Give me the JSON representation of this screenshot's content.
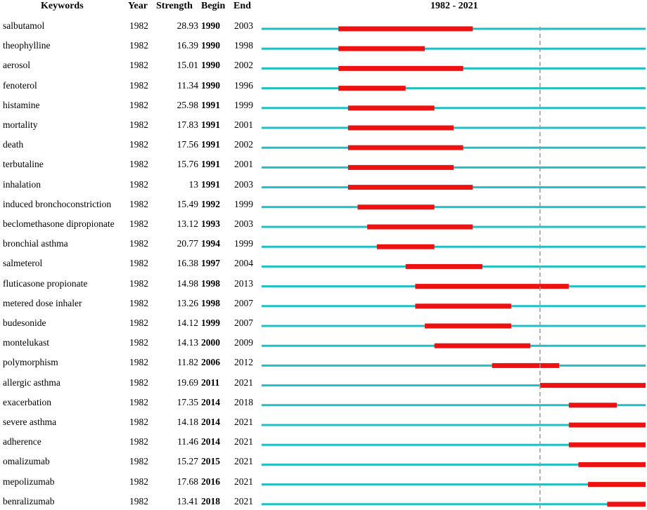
{
  "headers": {
    "keywords": "Keywords",
    "year": "Year",
    "strength": "Strength",
    "begin": "Begin",
    "end": "End",
    "range": "1982 - 2021"
  },
  "chart_data": {
    "type": "table",
    "timeline_start": 1982,
    "timeline_end": 2021,
    "reference_line_year": 2011,
    "colors": {
      "baseline": "#1fbfc3",
      "burst": "#ee1111",
      "reference": "#999999"
    },
    "columns": [
      "Keywords",
      "Year",
      "Strength",
      "Begin",
      "End"
    ],
    "rows": [
      {
        "keyword": "salbutamol",
        "year": "1982",
        "strength": "28.93",
        "begin": "1990",
        "end": "2003"
      },
      {
        "keyword": "theophylline",
        "year": "1982",
        "strength": "16.39",
        "begin": "1990",
        "end": "1998"
      },
      {
        "keyword": "aerosol",
        "year": "1982",
        "strength": "15.01",
        "begin": "1990",
        "end": "2002"
      },
      {
        "keyword": "fenoterol",
        "year": "1982",
        "strength": "11.34",
        "begin": "1990",
        "end": "1996"
      },
      {
        "keyword": "histamine",
        "year": "1982",
        "strength": "25.98",
        "begin": "1991",
        "end": "1999"
      },
      {
        "keyword": "mortality",
        "year": "1982",
        "strength": "17.83",
        "begin": "1991",
        "end": "2001"
      },
      {
        "keyword": "death",
        "year": "1982",
        "strength": "17.56",
        "begin": "1991",
        "end": "2002"
      },
      {
        "keyword": "terbutaline",
        "year": "1982",
        "strength": "15.76",
        "begin": "1991",
        "end": "2001"
      },
      {
        "keyword": "inhalation",
        "year": "1982",
        "strength": "13",
        "begin": "1991",
        "end": "2003"
      },
      {
        "keyword": "induced bronchoconstriction",
        "year": "1982",
        "strength": "15.49",
        "begin": "1992",
        "end": "1999"
      },
      {
        "keyword": "beclomethasone dipropionate",
        "year": "1982",
        "strength": "13.12",
        "begin": "1993",
        "end": "2003"
      },
      {
        "keyword": "bronchial asthma",
        "year": "1982",
        "strength": "20.77",
        "begin": "1994",
        "end": "1999"
      },
      {
        "keyword": "salmeterol",
        "year": "1982",
        "strength": "16.38",
        "begin": "1997",
        "end": "2004"
      },
      {
        "keyword": "fluticasone propionate",
        "year": "1982",
        "strength": "14.98",
        "begin": "1998",
        "end": "2013"
      },
      {
        "keyword": "metered dose inhaler",
        "year": "1982",
        "strength": "13.26",
        "begin": "1998",
        "end": "2007"
      },
      {
        "keyword": "budesonide",
        "year": "1982",
        "strength": "14.12",
        "begin": "1999",
        "end": "2007"
      },
      {
        "keyword": "montelukast",
        "year": "1982",
        "strength": "14.13",
        "begin": "2000",
        "end": "2009"
      },
      {
        "keyword": "polymorphism",
        "year": "1982",
        "strength": "11.82",
        "begin": "2006",
        "end": "2012"
      },
      {
        "keyword": "allergic asthma",
        "year": "1982",
        "strength": "19.69",
        "begin": "2011",
        "end": "2021"
      },
      {
        "keyword": "exacerbation",
        "year": "1982",
        "strength": "17.35",
        "begin": "2014",
        "end": "2018"
      },
      {
        "keyword": "severe asthma",
        "year": "1982",
        "strength": "14.18",
        "begin": "2014",
        "end": "2021"
      },
      {
        "keyword": "adherence",
        "year": "1982",
        "strength": "11.46",
        "begin": "2014",
        "end": "2021"
      },
      {
        "keyword": "omalizumab",
        "year": "1982",
        "strength": "15.27",
        "begin": "2015",
        "end": "2021"
      },
      {
        "keyword": "mepolizumab",
        "year": "1982",
        "strength": "17.68",
        "begin": "2016",
        "end": "2021"
      },
      {
        "keyword": "benralizumab",
        "year": "1982",
        "strength": "13.41",
        "begin": "2018",
        "end": "2021"
      }
    ]
  }
}
